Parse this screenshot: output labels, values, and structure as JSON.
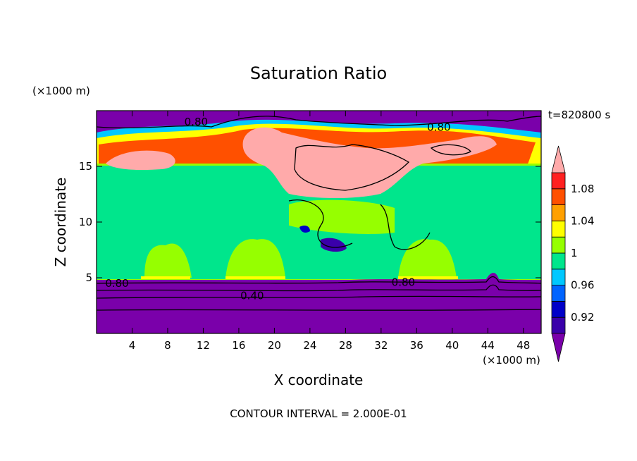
{
  "chart_data": {
    "type": "contour",
    "title": "Saturation Ratio",
    "xlabel": "X coordinate",
    "ylabel": "Z coordinate",
    "x_unit": "(×1000 m)",
    "y_unit": "(×1000 m)",
    "time_label": "t=820800 s",
    "footer": "CONTOUR INTERVAL = 2.000E-01",
    "xlim": [
      0,
      50
    ],
    "ylim": [
      0,
      20
    ],
    "x_ticks": [
      4,
      8,
      12,
      16,
      20,
      24,
      28,
      32,
      36,
      40,
      44,
      48
    ],
    "y_ticks": [
      5,
      10,
      15
    ],
    "colorbar": {
      "levels": [
        0.9,
        0.92,
        0.94,
        0.96,
        0.98,
        1.0,
        1.02,
        1.04,
        1.06,
        1.08,
        1.1
      ],
      "labels": [
        "0.92",
        "0.96",
        "1",
        "1.04",
        "1.08"
      ],
      "label_values": [
        0.92,
        0.96,
        1.0,
        1.04,
        1.08
      ],
      "colors": [
        "#7a00aa",
        "#3a00aa",
        "#0000c8",
        "#0064ff",
        "#00c8ff",
        "#00e68c",
        "#96ff00",
        "#ffff00",
        "#ffa000",
        "#ff5000",
        "#ff2020",
        "#ffaaaa"
      ],
      "extend": "both"
    },
    "contour_labels": [
      {
        "text": "0.80",
        "x": 11.2,
        "y": 19.0
      },
      {
        "text": "0.80",
        "x": 38.5,
        "y": 18.5
      },
      {
        "text": "0.80",
        "x": 2.3,
        "y": 4.5
      },
      {
        "text": "0.80",
        "x": 34.5,
        "y": 4.6
      },
      {
        "text": "0.40",
        "x": 17.5,
        "y": 3.4
      }
    ]
  }
}
